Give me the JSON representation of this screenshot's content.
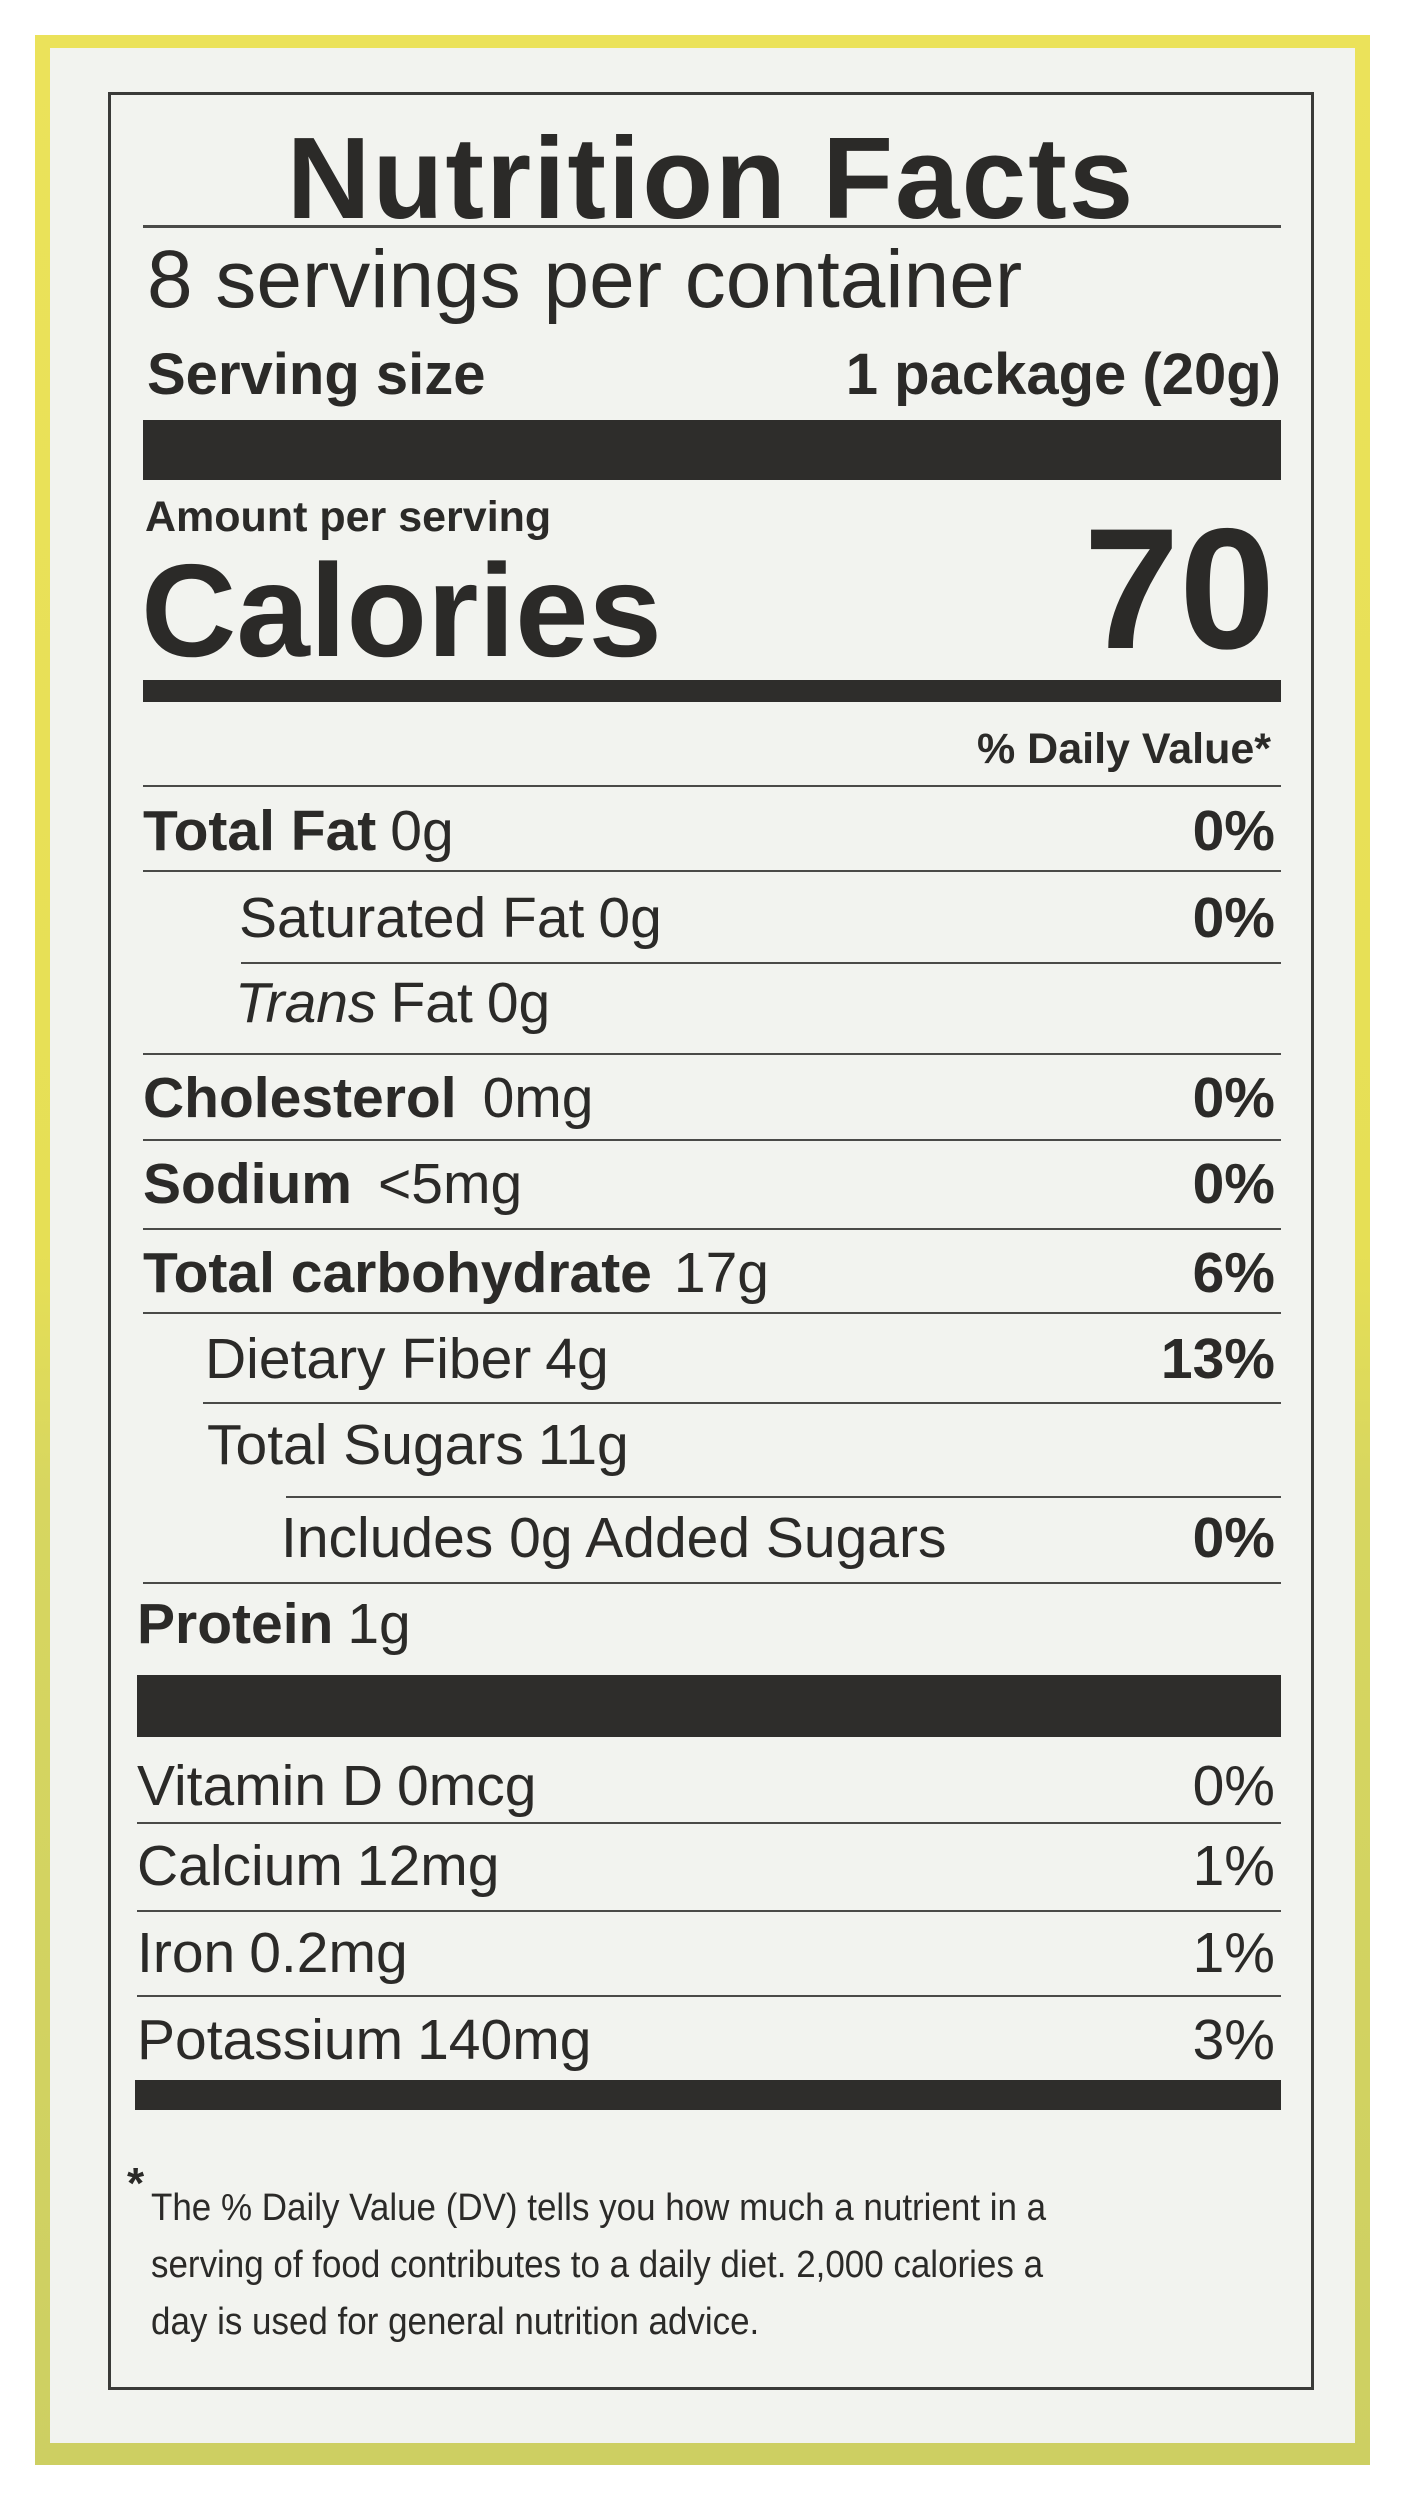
{
  "title": "Nutrition Facts",
  "servings_per_container": "8 servings per container",
  "serving_size_label": "Serving size",
  "serving_size_value": "1 package (20g)",
  "amount_per_serving": "Amount per serving",
  "calories_label": "Calories",
  "calories_value": "70",
  "daily_value_header": "% Daily Value*",
  "nutrients": [
    {
      "name": "Total Fat",
      "amount": "0g",
      "dv": "0%"
    },
    {
      "name": "Saturated Fat",
      "amount": "0g",
      "dv": "0%"
    },
    {
      "name_italic": "Trans",
      "name": "Fat",
      "amount": "0g"
    },
    {
      "name": "Cholesterol",
      "amount": "0mg",
      "dv": "0%"
    },
    {
      "name": "Sodium",
      "amount": "<5mg",
      "dv": "0%"
    },
    {
      "name": "Total carbohydrate",
      "amount": "17g",
      "dv": "6%"
    },
    {
      "name": "Dietary Fiber",
      "amount": "4g",
      "dv": "13%"
    },
    {
      "name": "Total Sugars",
      "amount": "11g"
    },
    {
      "name": "Includes 0g Added Sugars",
      "dv": "0%"
    },
    {
      "name": "Protein",
      "amount": "1g"
    }
  ],
  "vitamins": [
    {
      "name": "Vitamin D",
      "amount": "0mcg",
      "dv": "0%"
    },
    {
      "name": "Calcium",
      "amount": "12mg",
      "dv": "1%"
    },
    {
      "name": "Iron",
      "amount": "0.2mg",
      "dv": "1%"
    },
    {
      "name": "Potassium",
      "amount": "140mg",
      "dv": "3%"
    }
  ],
  "footnote": {
    "asterisk": "*",
    "lines": [
      "The % Daily Value (DV) tells you how much a nutrient in a",
      "serving of food contributes to a daily diet. 2,000 calories a",
      "day is used for general nutrition advice."
    ]
  },
  "colors": {
    "package_yellow": "#e8e058",
    "package_olive": "#cdcf62",
    "label_bg": "#f2f3ef",
    "ink": "#2b2a28"
  }
}
